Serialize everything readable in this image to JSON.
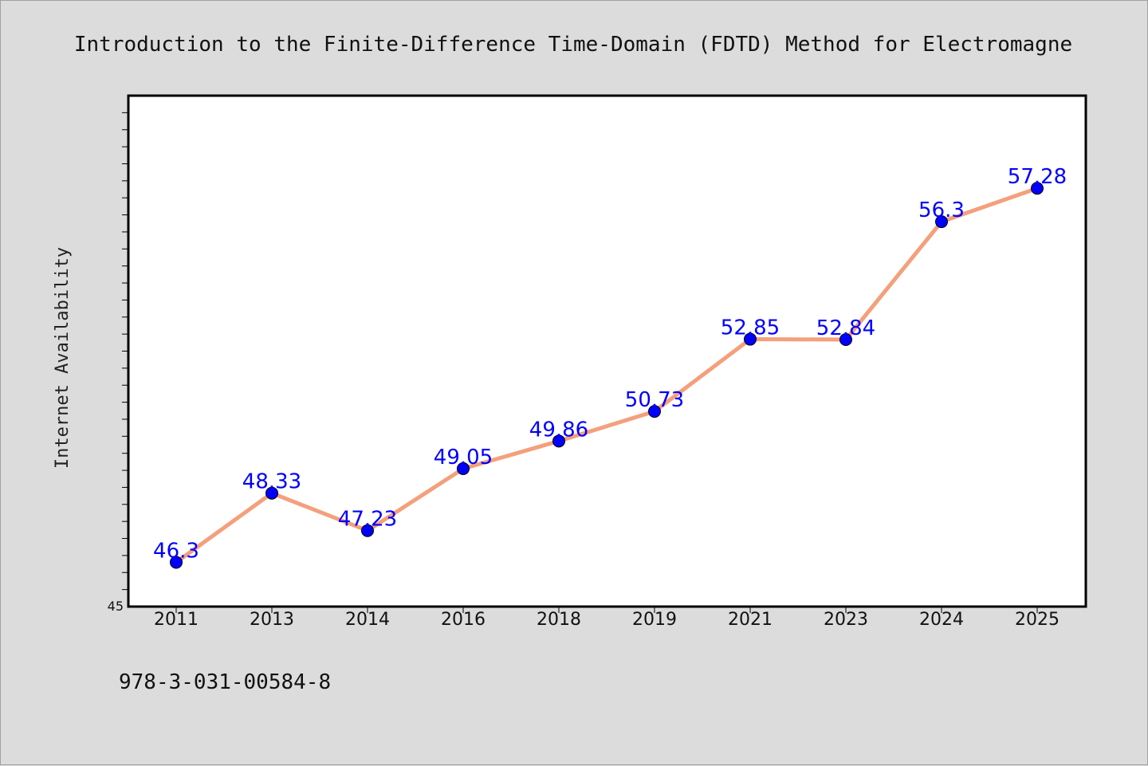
{
  "colors": {
    "background": "#dcdcdc",
    "plot_background": "#ffffff",
    "line": "#f4a07c",
    "marker": "#0000ff",
    "data_label": "#0000ff"
  },
  "footnote": "978-3-031-00584-8",
  "chart_data": {
    "type": "line",
    "title": "Introduction to the Finite-Difference Time-Domain (FDTD) Method for Electromagne",
    "xlabel": "",
    "ylabel": "Internet Availability",
    "categories": [
      "2011",
      "2013",
      "2014",
      "2016",
      "2018",
      "2019",
      "2021",
      "2023",
      "2024",
      "2025"
    ],
    "series": [
      {
        "values": [
          46.3,
          48.33,
          47.23,
          49.05,
          49.86,
          50.73,
          52.85,
          52.84,
          56.3,
          57.28
        ]
      }
    ],
    "data_labels": [
      "46.3",
      "48.33",
      "47.23",
      "49.05",
      "49.86",
      "50.73",
      "52.85",
      "52.84",
      "56.3",
      "57.28"
    ],
    "ylim": [
      45,
      60
    ],
    "ytick_labels": [
      "45"
    ],
    "grid": false,
    "legend": "none"
  }
}
